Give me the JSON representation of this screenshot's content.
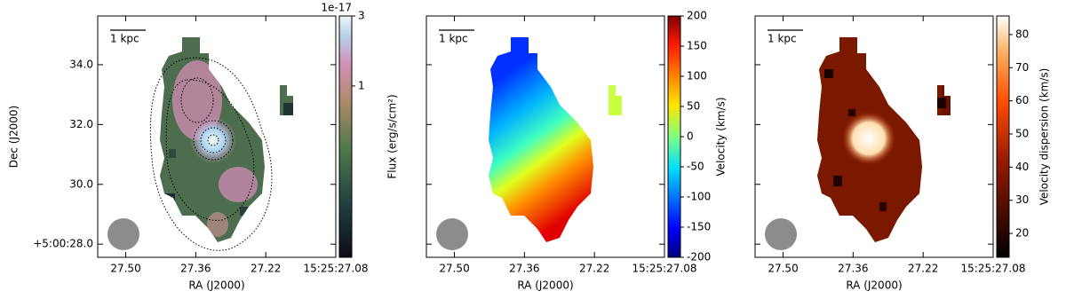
{
  "chart_data": [
    {
      "type": "image",
      "xlabel": "RA (J2000)",
      "ylabel": "Dec (J2000)",
      "scalebar": "1 kpc",
      "xlim": [
        27.556,
        27.08
      ],
      "xticks": [
        {
          "value": 27.5,
          "label": "27.50"
        },
        {
          "value": 27.36,
          "label": "27.36"
        },
        {
          "value": 27.22,
          "label": "27.22"
        },
        {
          "value": 27.08,
          "label": "15:25:27.08"
        }
      ],
      "ylim": [
        27.56,
        35.63
      ],
      "yticks": [
        {
          "value": 28,
          "label": "+5:00:28.0"
        },
        {
          "value": 30,
          "label": "30.0"
        },
        {
          "value": 32,
          "label": "32.0"
        },
        {
          "value": 34,
          "label": "34.0"
        }
      ],
      "colorbar": {
        "label": "Flux (erg/s/cm²)",
        "log": true,
        "offset": "1e-17",
        "lim": [
          0.068,
          3
        ],
        "ticks": [
          1,
          3
        ]
      }
    },
    {
      "type": "image",
      "xlabel": "RA (J2000)",
      "scalebar": "1 kpc",
      "xlim": [
        27.556,
        27.08
      ],
      "xticks": [
        {
          "value": 27.5,
          "label": "27.50"
        },
        {
          "value": 27.36,
          "label": "27.36"
        },
        {
          "value": 27.22,
          "label": "27.22"
        },
        {
          "value": 27.08,
          "label": "15:25:27.08"
        }
      ],
      "ylim": [
        27.56,
        35.63
      ],
      "yticks": [
        28,
        30,
        32,
        34
      ],
      "ytick_labels": false,
      "colorbar": {
        "label": "Velocity (km/s)",
        "log": false,
        "lim": [
          -200,
          200
        ],
        "ticks": [
          -200,
          -150,
          -100,
          -50,
          0,
          50,
          100,
          150,
          200
        ]
      }
    },
    {
      "type": "image",
      "xlabel": "RA (J2000)",
      "scalebar": "1 kpc",
      "xlim": [
        27.556,
        27.08
      ],
      "xticks": [
        {
          "value": 27.5,
          "label": "27.50"
        },
        {
          "value": 27.36,
          "label": "27.36"
        },
        {
          "value": 27.22,
          "label": "27.22"
        },
        {
          "value": 27.08,
          "label": "15:25:27.08"
        }
      ],
      "ylim": [
        27.56,
        35.63
      ],
      "yticks": [
        28,
        30,
        32,
        34
      ],
      "ytick_labels": false,
      "colorbar": {
        "label": "Velocity dispersion (km/s)",
        "log": false,
        "lim": [
          12.8,
          85.6
        ],
        "ticks": [
          20,
          30,
          40,
          50,
          60,
          70,
          80
        ]
      }
    }
  ]
}
